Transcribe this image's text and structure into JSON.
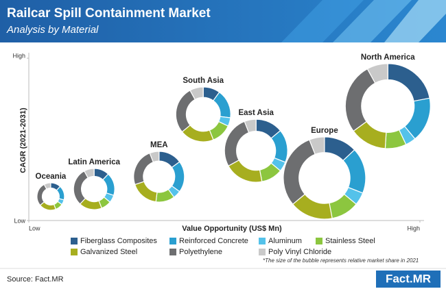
{
  "chart_data": {
    "type": "donut-bubble",
    "title": "Railcar Spill Containment Market",
    "subtitle": "Analysis by Material",
    "xlabel": "Value Opportunity (US$ Mn)",
    "ylabel": "CAGR (2021-2031)",
    "xlim": [
      0,
      100
    ],
    "ylim": [
      0,
      100
    ],
    "xticks": [
      {
        "value": 0,
        "label": "Low"
      },
      {
        "value": 100,
        "label": "High"
      }
    ],
    "yticks": [
      {
        "value": 0,
        "label": "Low"
      },
      {
        "value": 100,
        "label": "High"
      }
    ],
    "categories": [
      "Oceania",
      "Latin America",
      "MEA",
      "South Asia",
      "East Asia",
      "Europe",
      "North America"
    ],
    "x": [
      5.6,
      16.7,
      33.3,
      44.6,
      58.1,
      75.6,
      91.8
    ],
    "y": [
      14.8,
      19.4,
      27.0,
      65.4,
      43.0,
      26.2,
      70.5
    ],
    "size": [
      20,
      30,
      37,
      40,
      46,
      60,
      62
    ],
    "series": [
      {
        "name": "Fiberglass Composites",
        "color": "#2c5f8e",
        "values": [
          12,
          12,
          15,
          10,
          14,
          13,
          22
        ]
      },
      {
        "name": "Reinforced Concrete",
        "color": "#2a9fd0",
        "values": [
          17,
          18,
          20,
          17,
          17,
          18,
          17
        ]
      },
      {
        "name": "Aluminum",
        "color": "#54c2ea",
        "values": [
          6,
          6,
          5,
          5,
          5,
          5,
          4
        ]
      },
      {
        "name": "Stainless Steel",
        "color": "#8cc63f",
        "values": [
          9,
          8,
          12,
          12,
          11,
          11,
          8
        ]
      },
      {
        "name": "Galvanized Steel",
        "color": "#a7ae1f",
        "values": [
          20,
          18,
          18,
          20,
          20,
          17,
          14
        ]
      },
      {
        "name": "Polyethylene",
        "color": "#6d6e70",
        "values": [
          28,
          30,
          24,
          28,
          27,
          30,
          27
        ]
      },
      {
        "name": "Poly Vinyl Chloride",
        "color": "#c9c9c9",
        "values": [
          8,
          8,
          6,
          8,
          6,
          6,
          8
        ]
      }
    ],
    "legend": "bottom",
    "note": "*The size of the bubble represents relative market share in 2021"
  },
  "source": "Source: Fact.MR",
  "logo": "Fact.MR"
}
